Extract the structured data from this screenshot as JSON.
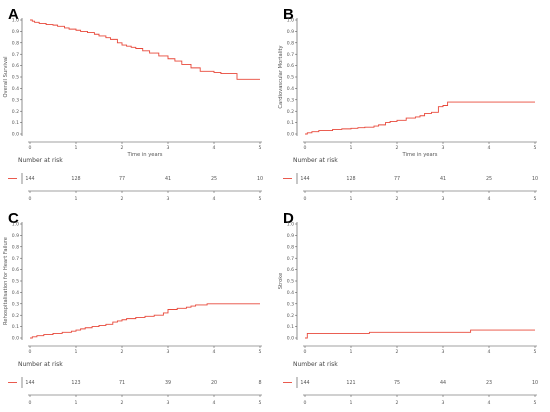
{
  "chart_data": [
    {
      "type": "line",
      "panel_label": "A",
      "ylabel": "Overall Survival",
      "xlabel": "Time in years",
      "xlim": [
        0,
        5
      ],
      "ylim": [
        0,
        1
      ],
      "x_ticks": [
        "0",
        "1",
        "2",
        "3",
        "4",
        "5"
      ],
      "y_ticks": [
        "0.0",
        "0.1",
        "0.2",
        "0.3",
        "0.4",
        "0.5",
        "0.6",
        "0.7",
        "0.8",
        "0.9",
        "1.0"
      ],
      "series": [
        {
          "color": "#e8483a",
          "x": [
            0,
            0.05,
            0.1,
            0.2,
            0.35,
            0.5,
            0.6,
            0.75,
            0.85,
            1.0,
            1.1,
            1.25,
            1.4,
            1.5,
            1.65,
            1.75,
            1.9,
            2.0,
            2.1,
            2.2,
            2.3,
            2.45,
            2.6,
            2.8,
            3.0,
            3.15,
            3.3,
            3.5,
            3.7,
            4.0,
            4.15,
            4.5,
            5.0
          ],
          "y": [
            1.0,
            0.99,
            0.98,
            0.97,
            0.96,
            0.955,
            0.945,
            0.93,
            0.92,
            0.91,
            0.9,
            0.89,
            0.875,
            0.86,
            0.845,
            0.83,
            0.8,
            0.78,
            0.77,
            0.76,
            0.75,
            0.73,
            0.71,
            0.685,
            0.66,
            0.64,
            0.61,
            0.58,
            0.55,
            0.54,
            0.53,
            0.48,
            0.48
          ]
        }
      ],
      "risk_table": {
        "title": "Number at risk",
        "values": [
          "144",
          "128",
          "77",
          "41",
          "25",
          "10"
        ]
      }
    },
    {
      "type": "line",
      "panel_label": "B",
      "ylabel": "Cardiovascular Mortality",
      "xlabel": "Time in years",
      "xlim": [
        0,
        5
      ],
      "ylim": [
        0,
        1
      ],
      "x_ticks": [
        "0",
        "1",
        "2",
        "3",
        "4",
        "5"
      ],
      "y_ticks": [
        "0.0",
        "0.1",
        "0.2",
        "0.3",
        "0.4",
        "0.5",
        "0.6",
        "0.7",
        "0.8",
        "0.9",
        "1.0"
      ],
      "series": [
        {
          "color": "#e8483a",
          "x": [
            0,
            0.05,
            0.15,
            0.3,
            0.6,
            0.8,
            1.0,
            1.15,
            1.3,
            1.5,
            1.6,
            1.75,
            1.85,
            2.0,
            2.2,
            2.4,
            2.5,
            2.6,
            2.75,
            2.9,
            3.0,
            3.1,
            5.0
          ],
          "y": [
            0.0,
            0.01,
            0.02,
            0.03,
            0.04,
            0.045,
            0.05,
            0.055,
            0.06,
            0.07,
            0.08,
            0.1,
            0.11,
            0.12,
            0.14,
            0.15,
            0.16,
            0.18,
            0.19,
            0.24,
            0.25,
            0.28,
            0.28
          ]
        }
      ],
      "risk_table": {
        "title": "Number at risk",
        "values": [
          "144",
          "128",
          "77",
          "41",
          "25",
          "10"
        ]
      }
    },
    {
      "type": "line",
      "panel_label": "C",
      "ylabel": "Rehospitalisation for Heart Failure",
      "xlabel": "",
      "xlim": [
        0,
        5
      ],
      "ylim": [
        0,
        1
      ],
      "x_ticks": [
        "0",
        "1",
        "2",
        "3",
        "4",
        "5"
      ],
      "y_ticks": [
        "0.0",
        "0.1",
        "0.2",
        "0.3",
        "0.4",
        "0.5",
        "0.6",
        "0.7",
        "0.8",
        "0.9",
        "1.0"
      ],
      "series": [
        {
          "color": "#e8483a",
          "x": [
            0,
            0.05,
            0.15,
            0.3,
            0.5,
            0.7,
            0.9,
            1.0,
            1.1,
            1.2,
            1.35,
            1.5,
            1.65,
            1.8,
            1.9,
            2.0,
            2.1,
            2.3,
            2.5,
            2.7,
            2.9,
            3.0,
            3.2,
            3.4,
            3.5,
            3.6,
            3.75,
            3.85,
            5.0
          ],
          "y": [
            0.0,
            0.01,
            0.02,
            0.03,
            0.04,
            0.05,
            0.06,
            0.07,
            0.08,
            0.09,
            0.1,
            0.11,
            0.12,
            0.14,
            0.15,
            0.16,
            0.17,
            0.18,
            0.19,
            0.2,
            0.22,
            0.25,
            0.26,
            0.27,
            0.28,
            0.29,
            0.29,
            0.3,
            0.3
          ]
        }
      ],
      "risk_table": {
        "title": "Number at risk",
        "values": [
          "144",
          "123",
          "71",
          "39",
          "20",
          "8"
        ]
      }
    },
    {
      "type": "line",
      "panel_label": "D",
      "ylabel": "Stroke",
      "xlabel": "",
      "xlim": [
        0,
        5
      ],
      "ylim": [
        0,
        1
      ],
      "x_ticks": [
        "0",
        "1",
        "2",
        "3",
        "4",
        "5"
      ],
      "y_ticks": [
        "0.0",
        "0.1",
        "0.2",
        "0.3",
        "0.4",
        "0.5",
        "0.6",
        "0.7",
        "0.8",
        "0.9",
        "1.0"
      ],
      "series": [
        {
          "color": "#e8483a",
          "x": [
            0,
            0.05,
            0.6,
            1.4,
            3.6,
            5.0
          ],
          "y": [
            0.0,
            0.04,
            0.04,
            0.05,
            0.07,
            0.07
          ]
        }
      ],
      "risk_table": {
        "title": "Number at risk",
        "values": [
          "144",
          "121",
          "75",
          "44",
          "23",
          "10"
        ]
      }
    }
  ]
}
